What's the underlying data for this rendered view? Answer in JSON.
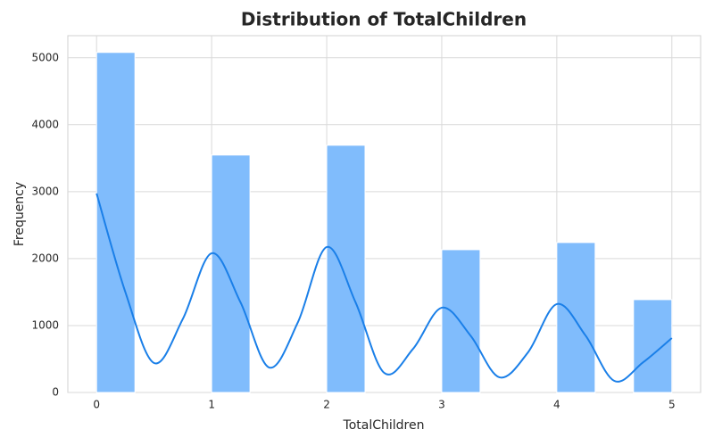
{
  "chart_data": {
    "type": "histogram",
    "title": "Distribution of TotalChildren",
    "x_label": "TotalChildren",
    "y_label": "Frequency",
    "bins": [
      0,
      0.3333,
      0.6667,
      1,
      1.3333,
      1.6667,
      2,
      2.3333,
      2.6667,
      3,
      3.3333,
      3.6667,
      4,
      4.3333,
      4.6667,
      5
    ],
    "counts": [
      5080,
      0,
      0,
      3547,
      0,
      0,
      3693,
      0,
      0,
      2133,
      0,
      0,
      2240,
      0,
      1387
    ],
    "color": "#80bcfc",
    "kde": {
      "color": "#1a7fe8",
      "x": [
        0,
        0.25,
        0.5,
        0.75,
        1,
        1.25,
        1.5,
        1.75,
        2,
        2.25,
        2.5,
        2.75,
        3,
        3.25,
        3.5,
        3.75,
        4,
        4.25,
        4.5,
        4.75,
        5
      ],
      "values": [
        2973,
        1500,
        440,
        1100,
        2080,
        1350,
        373,
        1050,
        2173,
        1350,
        293,
        650,
        1267,
        850,
        227,
        600,
        1320,
        850,
        173,
        450,
        813
      ]
    },
    "xlim": [
      -0.25,
      5.25
    ],
    "ylim": [
      0,
      5330
    ],
    "xticks": [
      0,
      1,
      2,
      3,
      4,
      5
    ],
    "yticks": [
      0,
      1000,
      2000,
      3000,
      4000,
      5000
    ],
    "grid": true
  }
}
